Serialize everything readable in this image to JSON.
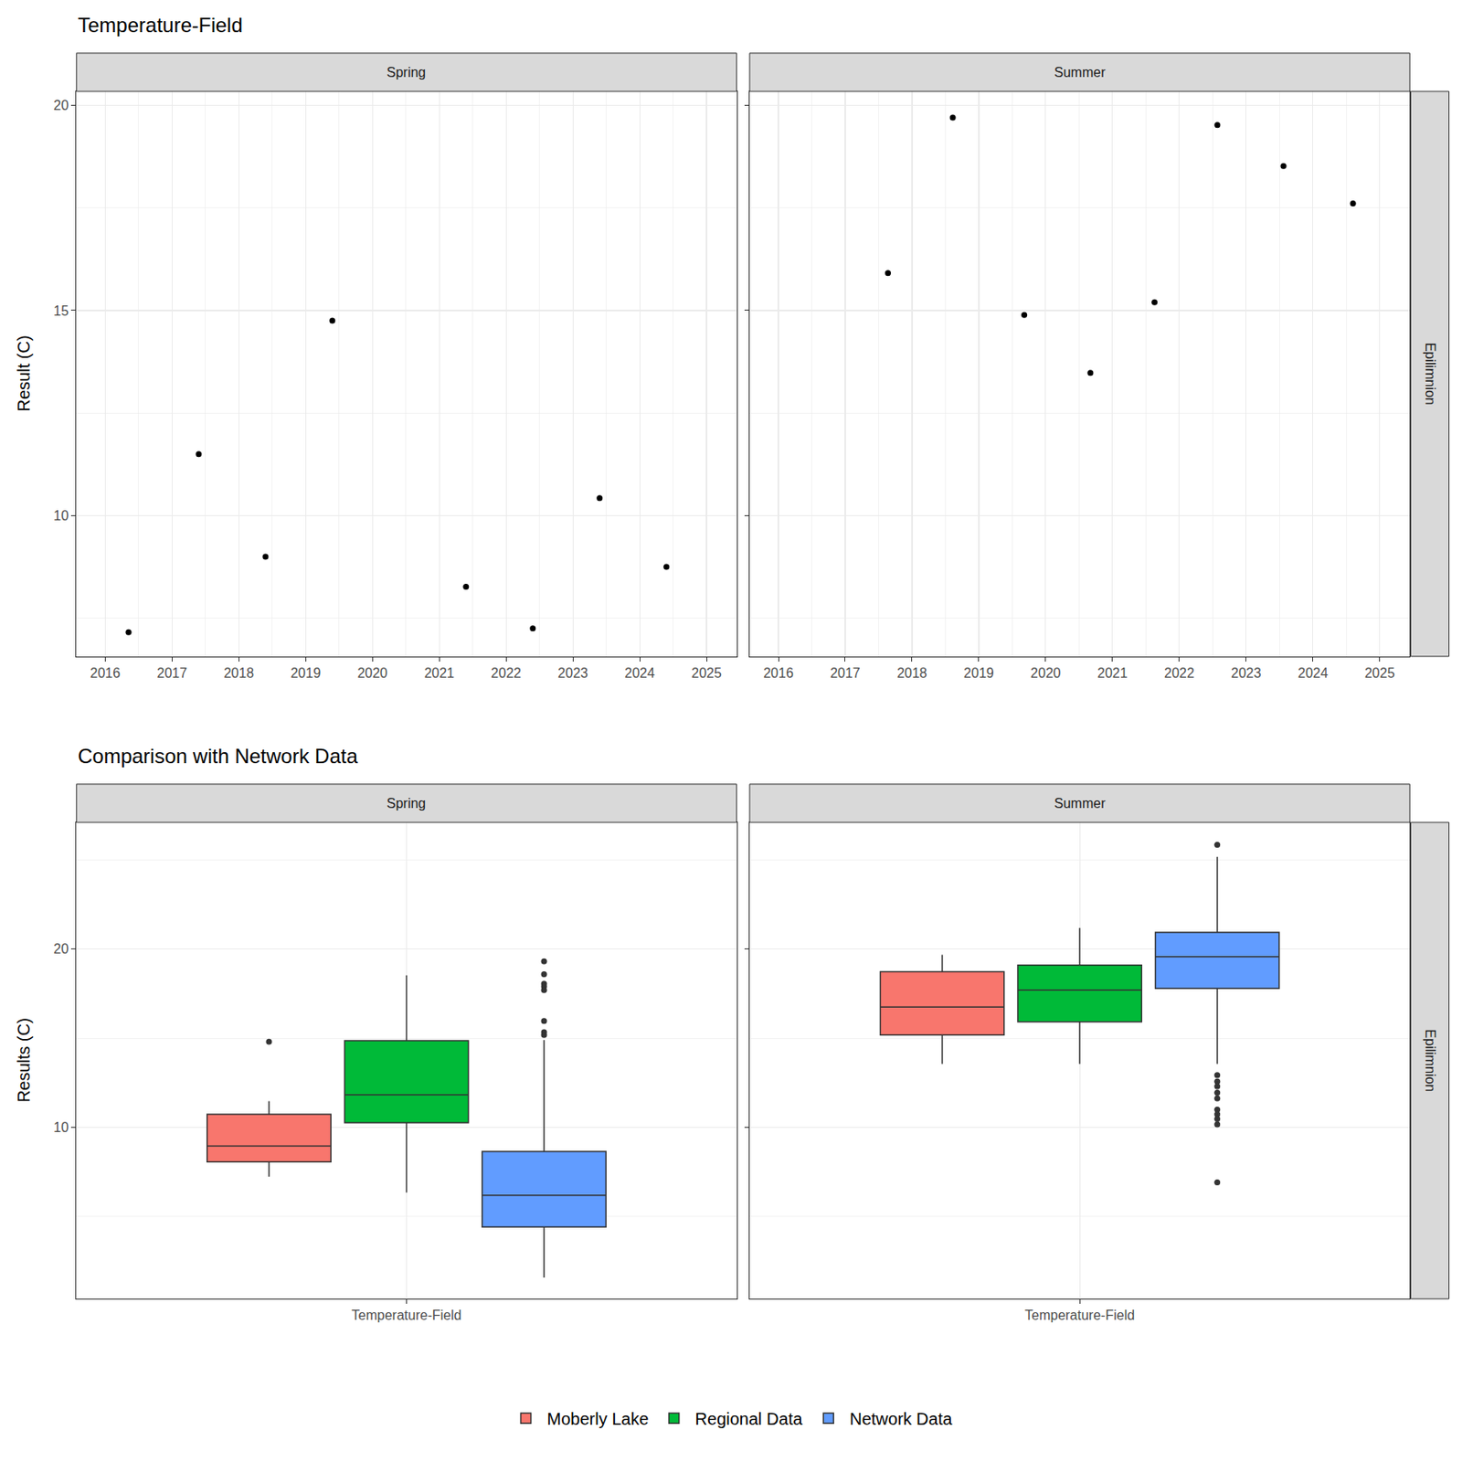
{
  "chart_data": [
    {
      "type": "scatter",
      "title": "Temperature-Field",
      "y_label": "Result (C)",
      "row_label": "Epilimnion",
      "color": "#000000",
      "grid": true,
      "xlim": [
        2015.57,
        2025.45
      ],
      "xticks": [
        2016,
        2017,
        2018,
        2019,
        2020,
        2021,
        2022,
        2023,
        2024,
        2025
      ],
      "ylim": [
        6.57,
        20.34
      ],
      "yticks": [
        10,
        15,
        20
      ],
      "panels": [
        {
          "name": "Spring",
          "x": [
            2016.35,
            2017.4,
            2018.4,
            2019.4,
            2021.4,
            2022.4,
            2023.4,
            2024.4
          ],
          "values": [
            7.16,
            11.5,
            9.0,
            14.75,
            8.27,
            7.25,
            10.43,
            8.75
          ]
        },
        {
          "name": "Summer",
          "x": [
            2017.64,
            2018.61,
            2019.68,
            2020.67,
            2021.63,
            2022.57,
            2023.56,
            2024.6
          ],
          "values": [
            15.91,
            19.7,
            14.89,
            13.48,
            15.2,
            19.52,
            18.52,
            17.61
          ]
        }
      ]
    },
    {
      "type": "box",
      "title": "Comparison with Network Data",
      "y_label": "Results (C)",
      "row_label": "Epilimnion",
      "facets": [
        "Spring",
        "Summer"
      ],
      "categories": [
        "Temperature-Field"
      ],
      "grid": true,
      "legend": "bottom",
      "ylim": [
        0.37,
        27.12
      ],
      "yticks": [
        10,
        20
      ],
      "series": [
        {
          "name": "Moberly Lake",
          "color": "#F8766D",
          "boxes": [
            {
              "q1": 8.06,
              "median": 8.95,
              "q3": 10.73,
              "lower": 7.23,
              "upper": 11.47,
              "outliers": [
                14.8
              ]
            },
            {
              "q1": 15.18,
              "median": 16.75,
              "q3": 18.74,
              "lower": 13.56,
              "upper": 19.69,
              "outliers": []
            }
          ]
        },
        {
          "name": "Regional Data",
          "color": "#00BA38",
          "boxes": [
            {
              "q1": 10.26,
              "median": 11.83,
              "q3": 14.87,
              "lower": 6.34,
              "upper": 18.53,
              "outliers": []
            },
            {
              "q1": 15.92,
              "median": 17.7,
              "q3": 19.11,
              "lower": 13.56,
              "upper": 21.2,
              "outliers": []
            }
          ]
        },
        {
          "name": "Network Data",
          "color": "#619CFF",
          "boxes": [
            {
              "q1": 4.4,
              "median": 6.18,
              "q3": 8.64,
              "lower": 1.57,
              "upper": 14.9,
              "outliers": [
                19.32,
                18.59,
                18.06,
                17.9,
                17.7,
                15.97,
                15.34,
                15.18
              ]
            },
            {
              "q1": 17.8,
              "median": 19.58,
              "q3": 20.94,
              "lower": 13.56,
              "upper": 25.18,
              "outliers": [
                25.86,
                12.93,
                12.57,
                12.3,
                11.94,
                11.62,
                10.99,
                10.73,
                10.47,
                10.16,
                6.91
              ]
            }
          ]
        }
      ]
    }
  ]
}
